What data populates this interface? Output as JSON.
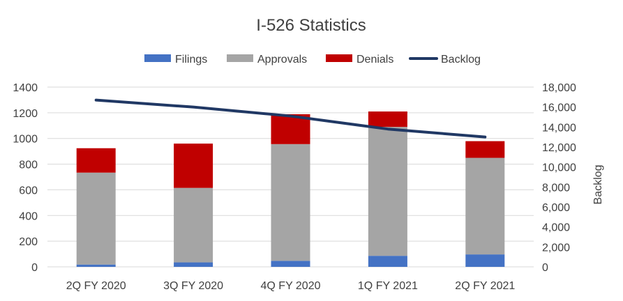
{
  "chart_data": {
    "type": "bar",
    "stacked": true,
    "title": "I-526 Statistics",
    "categories": [
      "2Q FY 2020",
      "3Q FY 2020",
      "4Q FY 2020",
      "1Q FY 2021",
      "2Q FY 2021"
    ],
    "series": [
      {
        "name": "Filings",
        "type": "bar",
        "axis": "left",
        "color": "#4472C4",
        "values": [
          18,
          35,
          47,
          86,
          97
        ]
      },
      {
        "name": "Approvals",
        "type": "bar",
        "axis": "left",
        "color": "#A5A5A5",
        "values": [
          716,
          580,
          909,
          1004,
          752
        ]
      },
      {
        "name": "Denials",
        "type": "bar",
        "axis": "left",
        "color": "#C00000",
        "values": [
          190,
          345,
          233,
          120,
          130
        ]
      },
      {
        "name": "Backlog",
        "type": "line",
        "axis": "right",
        "color": "#203864",
        "values": [
          16700,
          16000,
          15100,
          13800,
          13000
        ]
      }
    ],
    "yaxis_left": {
      "min": 0,
      "max": 1400,
      "ticks": [
        "0",
        "200",
        "400",
        "600",
        "800",
        "1000",
        "1200",
        "1400"
      ],
      "label": ""
    },
    "yaxis_right": {
      "min": 0,
      "max": 18000,
      "ticks": [
        "0",
        "2,000",
        "4,000",
        "6,000",
        "8,000",
        "10,000",
        "12,000",
        "14,000",
        "16,000",
        "18,000"
      ],
      "label": "Backlog"
    },
    "legend_position": "top",
    "grid": true
  }
}
